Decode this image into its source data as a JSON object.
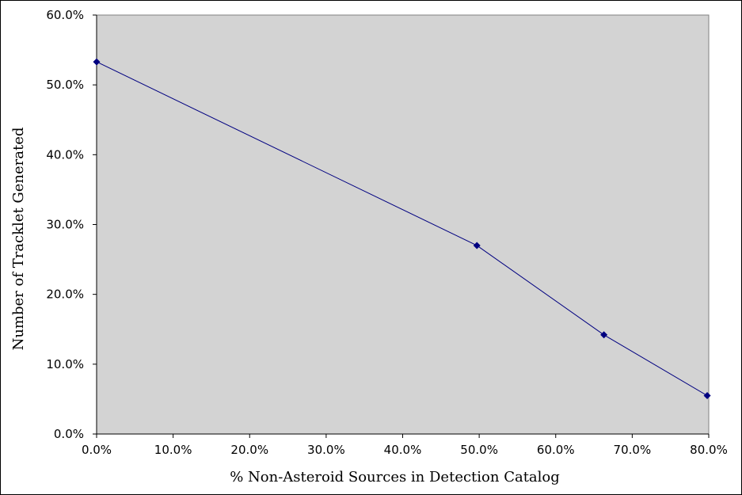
{
  "chart_data": {
    "type": "line",
    "title": "",
    "xlabel": "% Non-Asteroid Sources in Detection Catalog",
    "ylabel": "Number of Tracklet Generated",
    "xlim": [
      0,
      80
    ],
    "ylim": [
      0,
      60
    ],
    "x_ticks": [
      "0.0%",
      "10.0%",
      "20.0%",
      "30.0%",
      "40.0%",
      "50.0%",
      "60.0%",
      "70.0%",
      "80.0%"
    ],
    "y_ticks": [
      "0.0%",
      "10.0%",
      "20.0%",
      "30.0%",
      "40.0%",
      "50.0%",
      "60.0%"
    ],
    "grid": false,
    "legend": "none",
    "series": [
      {
        "x": [
          0.0,
          49.7,
          66.3,
          79.8
        ],
        "y": [
          53.3,
          27.0,
          14.2,
          5.5
        ],
        "color": "#000080",
        "marker": "diamond"
      }
    ],
    "plot_background": "#d3d3d3"
  }
}
